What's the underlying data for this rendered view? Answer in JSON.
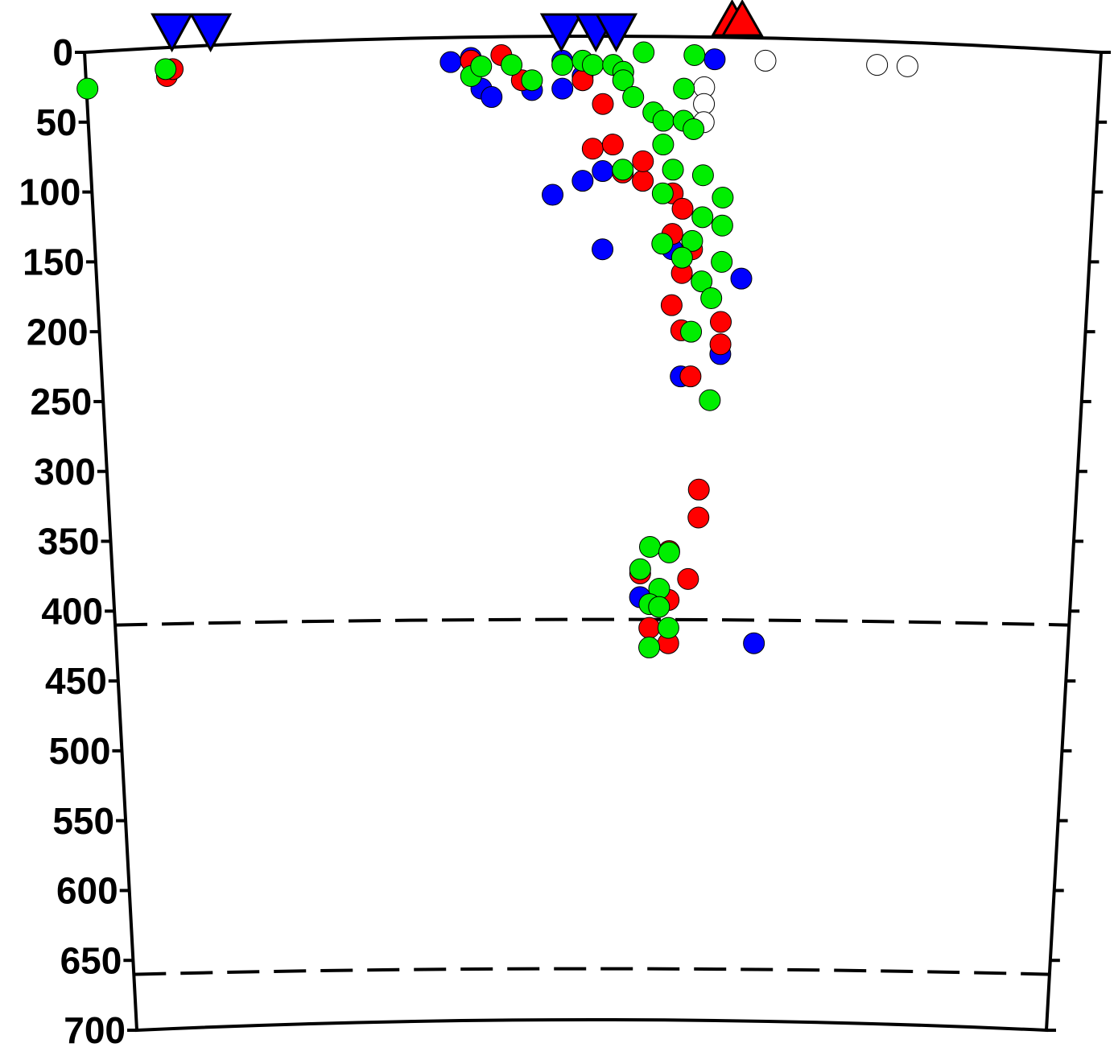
{
  "chart_data": {
    "type": "scatter",
    "ylim": [
      0,
      700
    ],
    "yticks": [
      0,
      50,
      100,
      150,
      200,
      250,
      300,
      350,
      400,
      450,
      500,
      550,
      600,
      650,
      700
    ],
    "xlim": [
      0,
      100
    ],
    "reference_lines": [
      410,
      660
    ],
    "series": [
      {
        "color": "#ffffff",
        "marker": "circle",
        "x": [
          67,
          78,
          81,
          61,
          61,
          61
        ],
        "values": [
          6,
          9,
          10,
          25,
          37,
          50
        ]
      },
      {
        "color": "#0000ff",
        "marker": "circle",
        "x": [
          36,
          38,
          39,
          40,
          44,
          47,
          47,
          49,
          53,
          62,
          46,
          49,
          51,
          51,
          58,
          65,
          63,
          59,
          55,
          67
        ],
        "values": [
          7,
          4,
          26,
          32,
          27,
          26,
          6,
          17,
          14,
          5,
          102,
          92,
          85,
          141,
          141,
          162,
          216,
          232,
          390,
          423
        ]
      },
      {
        "color": "#ff0000",
        "marker": "circle",
        "x": [
          8,
          8.6,
          38,
          41,
          43,
          49,
          51,
          50,
          52,
          53,
          55,
          55,
          58,
          59,
          58,
          60,
          59,
          58,
          59,
          63,
          63,
          60,
          61,
          61,
          58,
          60,
          55,
          57,
          58,
          56,
          58
        ],
        "values": [
          17,
          12,
          6,
          2,
          20,
          20,
          37,
          69,
          66,
          86,
          92,
          78,
          101,
          112,
          130,
          141,
          158,
          181,
          199,
          193,
          209,
          232,
          313,
          333,
          357,
          377,
          373,
          389,
          392,
          412,
          423
        ]
      },
      {
        "color": "#00ee00",
        "marker": "circle",
        "x": [
          0.1,
          7.9,
          38,
          39,
          42,
          44,
          47,
          49,
          50,
          52,
          53,
          55,
          53,
          54,
          56,
          57,
          59,
          59,
          60,
          60,
          57,
          58,
          53,
          57,
          61,
          63,
          61,
          63,
          60,
          57,
          59,
          63,
          61,
          62,
          60,
          62,
          56,
          58,
          55,
          57,
          56,
          57,
          58,
          56
        ],
        "values": [
          26,
          12,
          17,
          10,
          9,
          20,
          9,
          6,
          9,
          9,
          14,
          0,
          20,
          32,
          43,
          49,
          49,
          26,
          2,
          55,
          66,
          84,
          84,
          101,
          88,
          104,
          118,
          124,
          135,
          137,
          147,
          150,
          164,
          176,
          200,
          249,
          354,
          358,
          370,
          384,
          395,
          397,
          412,
          426
        ]
      },
      {
        "color": "#0000ff",
        "marker": "triangle-down",
        "x": [
          8.6,
          12.4,
          46.9,
          50.3,
          52.3
        ]
      },
      {
        "color": "#ff0000",
        "marker": "triangle-up",
        "x": [
          63.7,
          64.7
        ]
      }
    ]
  }
}
